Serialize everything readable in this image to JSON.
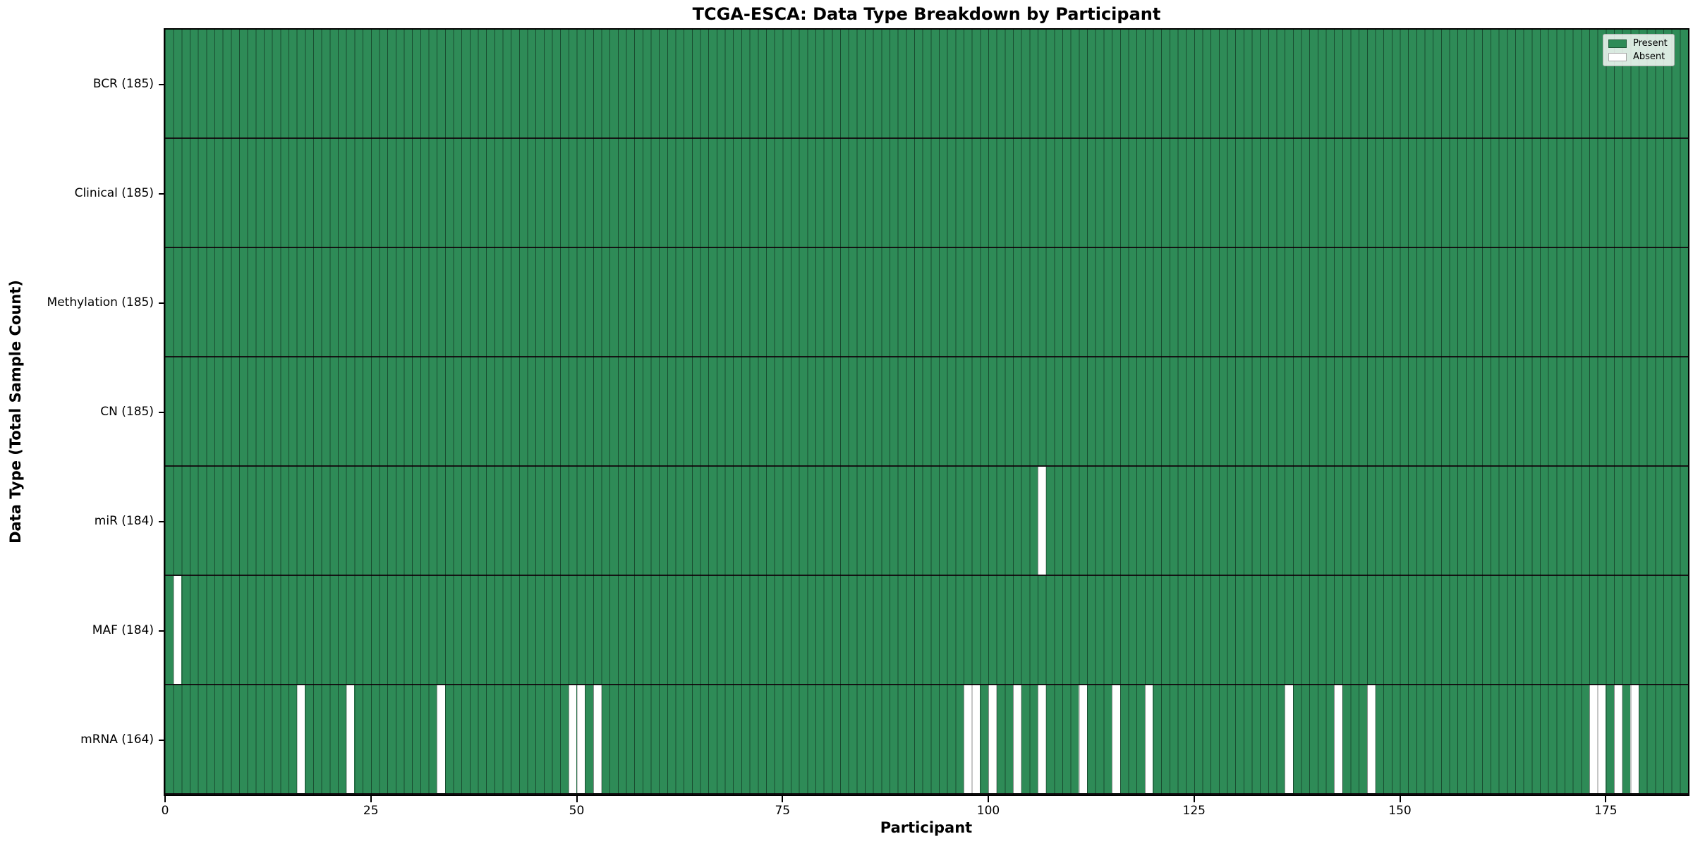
{
  "figure": {
    "title": "TCGA-ESCA: Data Type Breakdown by Participant"
  },
  "chart_data": {
    "type": "heatmap",
    "title": "TCGA-ESCA: Data Type Breakdown by Participant",
    "xlabel": "Participant",
    "ylabel": "Data Type (Total Sample Count)",
    "x_axis": {
      "range": [
        0,
        185
      ],
      "ticks": [
        0,
        25,
        50,
        75,
        100,
        125,
        150,
        175
      ]
    },
    "n_participants": 185,
    "grid": true,
    "colors": {
      "present": "#2e8b57",
      "absent": "#ffffff",
      "cell_edge": "rgba(0,0,0,0.45)",
      "row_separator": "#141414"
    },
    "legend": {
      "position": "upper right",
      "entries": [
        {
          "label": "Present",
          "color": "#2e8b57"
        },
        {
          "label": "Absent",
          "color": "#ffffff"
        }
      ]
    },
    "rows": [
      {
        "label": "BCR (185)",
        "total": 185,
        "absent_participants": []
      },
      {
        "label": "Clinical (185)",
        "total": 185,
        "absent_participants": []
      },
      {
        "label": "Methylation (185)",
        "total": 185,
        "absent_participants": []
      },
      {
        "label": "CN (185)",
        "total": 185,
        "absent_participants": []
      },
      {
        "label": "miR (184)",
        "total": 184,
        "absent_participants": [
          106
        ]
      },
      {
        "label": "MAF (184)",
        "total": 184,
        "absent_participants": [
          1
        ]
      },
      {
        "label": "mRNA (164)",
        "total": 164,
        "absent_participants": [
          16,
          22,
          33,
          49,
          50,
          52,
          97,
          98,
          100,
          103,
          106,
          111,
          115,
          119,
          136,
          142,
          146,
          173,
          174,
          176,
          178
        ]
      }
    ]
  }
}
